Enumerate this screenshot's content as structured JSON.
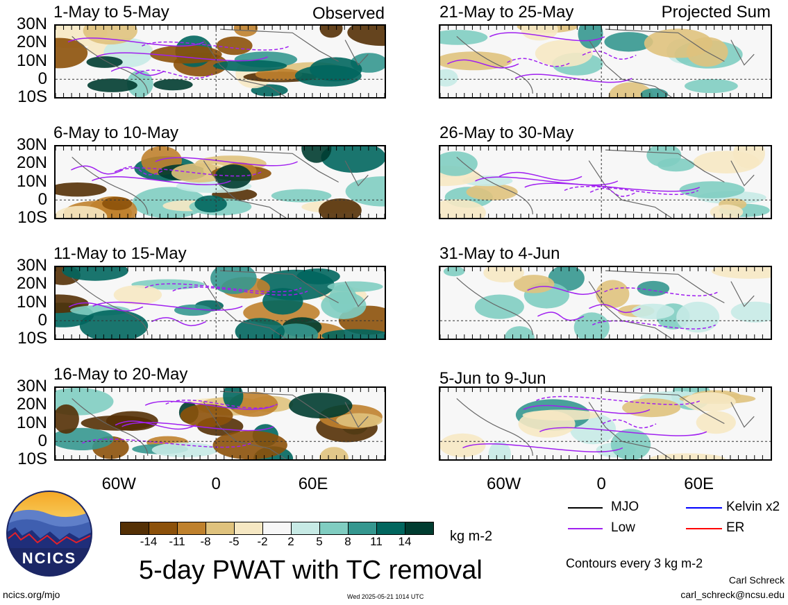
{
  "panels": {
    "left": [
      {
        "title": "1-May to 5-May",
        "tag": "Observed"
      },
      {
        "title": "6-May to 10-May",
        "tag": ""
      },
      {
        "title": "11-May to 15-May",
        "tag": ""
      },
      {
        "title": "16-May to 20-May",
        "tag": ""
      }
    ],
    "right": [
      {
        "title": "21-May to 25-May",
        "tag": "Projected Sum"
      },
      {
        "title": "26-May to 30-May",
        "tag": ""
      },
      {
        "title": "31-May to 4-Jun",
        "tag": ""
      },
      {
        "title": "5-Jun to 9-Jun",
        "tag": ""
      }
    ]
  },
  "lat_labels": [
    "30N",
    "20N",
    "10N",
    "0",
    "10S"
  ],
  "lon_labels": [
    "60W",
    "0",
    "60E"
  ],
  "colorbar": {
    "colors": [
      "#543005",
      "#8c510a",
      "#bf812d",
      "#dfc27d",
      "#f6e8c3",
      "#f7f7f7",
      "#c7eae5",
      "#80cdc1",
      "#35978f",
      "#01665e",
      "#003c30"
    ],
    "labels": [
      "-14",
      "-11",
      "-8",
      "-5",
      "-2",
      "2",
      "5",
      "8",
      "11",
      "14"
    ],
    "units": "kg m-2"
  },
  "title": "5-day PWAT with TC removal",
  "legend": {
    "items": [
      {
        "label": "MJO",
        "color": "#000000"
      },
      {
        "label": "Kelvin x2",
        "color": "#0000ff"
      },
      {
        "label": "Low",
        "color": "#a020f0"
      },
      {
        "label": "ER",
        "color": "#ff0000"
      }
    ],
    "note": "Contours every 3 kg m-2"
  },
  "credit": {
    "name": "Carl Schreck",
    "email": "carl_schreck@ncsu.edu"
  },
  "logo": {
    "text": "NCICS"
  },
  "footer": {
    "url": "ncics.org/mjo",
    "timestamp": "Wed 2025-05-21 1014 UTC"
  }
}
